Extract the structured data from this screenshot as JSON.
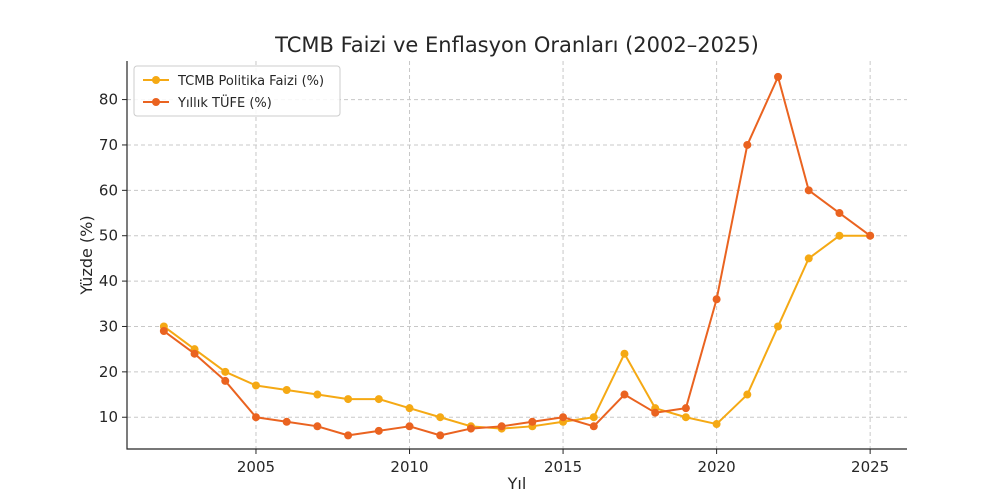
{
  "chart_data": {
    "type": "line",
    "title": "TCMB Faizi ve Enflasyon Oranları (2002–2025)",
    "xlabel": "Yıl",
    "ylabel": "Yüzde (%)",
    "xlim": [
      2000.8,
      2026.2
    ],
    "ylim": [
      3,
      88.5
    ],
    "xticks": [
      2005,
      2010,
      2015,
      2020,
      2025
    ],
    "yticks": [
      10,
      20,
      30,
      40,
      50,
      60,
      70,
      80
    ],
    "grid": true,
    "legend_position": "top-left",
    "x": [
      2002,
      2003,
      2004,
      2005,
      2006,
      2007,
      2008,
      2009,
      2010,
      2011,
      2012,
      2013,
      2014,
      2015,
      2016,
      2017,
      2018,
      2019,
      2020,
      2021,
      2022,
      2023,
      2024,
      2025
    ],
    "series": [
      {
        "name": "TCMB Politika Faizi (%)",
        "color": "#f5a914",
        "values": [
          30,
          25,
          20,
          17,
          16,
          15,
          14,
          14,
          12,
          10,
          8,
          7.5,
          8,
          9,
          10,
          24,
          12,
          10,
          8.5,
          15,
          30,
          45,
          50,
          50
        ]
      },
      {
        "name": "Yıllık TÜFE (%)",
        "color": "#ea6320",
        "values": [
          29,
          24,
          18,
          10,
          9,
          8,
          6,
          7,
          8,
          6,
          7.5,
          8,
          9,
          10,
          8,
          15,
          11,
          12,
          36,
          70,
          85,
          60,
          55,
          50
        ]
      }
    ]
  }
}
